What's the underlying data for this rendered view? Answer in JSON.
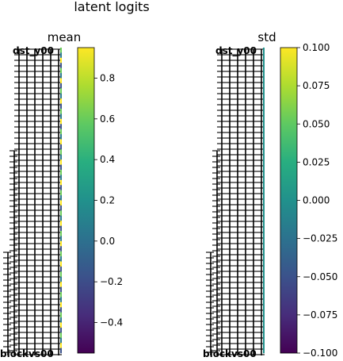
{
  "figure_title": "latent logits",
  "chart_data": [
    {
      "type": "heatmap",
      "title": "mean",
      "colormap": "viridis",
      "colorbar": {
        "range": [
          -0.55,
          0.95
        ],
        "ticks": [
          -0.4,
          -0.2,
          0.0,
          0.2,
          0.4,
          0.6,
          0.8
        ],
        "tick_labels": [
          "−0.4",
          "−0.2",
          "0.0",
          "0.2",
          "0.4",
          "0.6",
          "0.8"
        ]
      },
      "y_tick_labels": {
        "top": "dst_y00",
        "bottom": "blockvs00"
      },
      "grid": false
    },
    {
      "type": "heatmap",
      "title": "std",
      "colormap": "viridis",
      "colorbar": {
        "range": [
          -0.1,
          0.1
        ],
        "ticks": [
          -0.1,
          -0.075,
          -0.05,
          -0.025,
          0.0,
          0.025,
          0.05,
          0.075,
          0.1
        ],
        "tick_labels": [
          "−0.100",
          "−0.075",
          "−0.050",
          "−0.025",
          "0.000",
          "0.025",
          "0.050",
          "0.075",
          "0.100"
        ]
      },
      "y_tick_labels": {
        "top": "dst_y00",
        "bottom": "blockvs00"
      },
      "grid": false
    }
  ],
  "colors": {
    "viridis_0": "#440154",
    "viridis_25": "#3b528b",
    "viridis_50": "#21918c",
    "viridis_75": "#5ec962",
    "viridis_100": "#fde725"
  }
}
